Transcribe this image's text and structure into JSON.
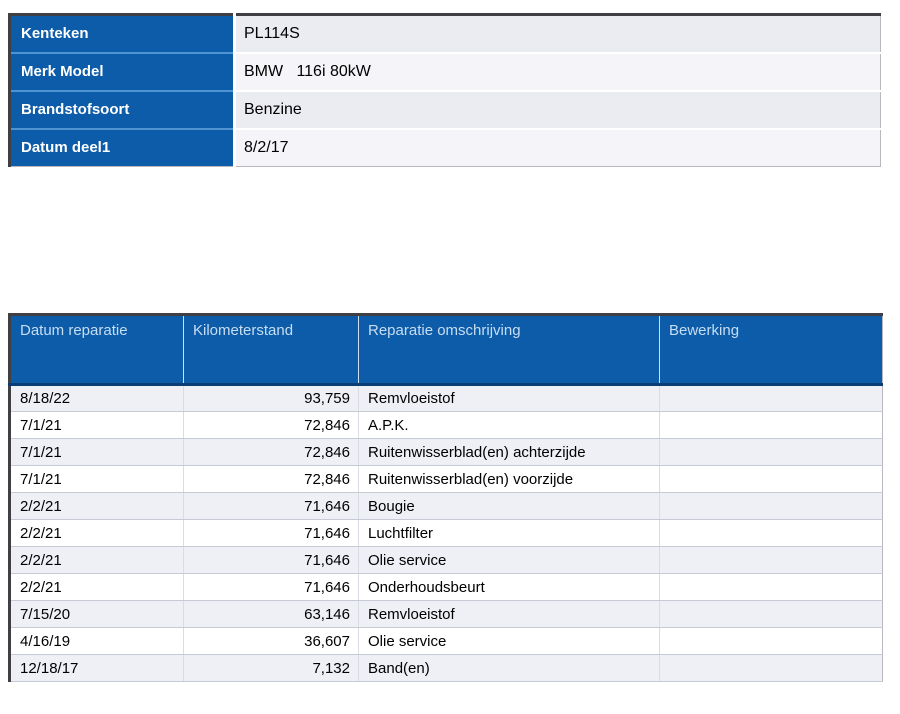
{
  "vehicle_info": {
    "rows": [
      {
        "label": "Kenteken",
        "value": "PL114S"
      },
      {
        "label": "Merk Model",
        "value": "BMW   116i 80kW"
      },
      {
        "label": "Brandstofsoort",
        "value": "Benzine"
      },
      {
        "label": "Datum deel1",
        "value": "8/2/17"
      }
    ]
  },
  "repair_table": {
    "columns": [
      "Datum reparatie",
      "Kilometerstand",
      "Reparatie omschrijving",
      "Bewerking"
    ],
    "rows": [
      {
        "datum": "8/18/22",
        "kilometerstand": "93,759",
        "omschrijving": "Remvloeistof",
        "bewerking": ""
      },
      {
        "datum": "7/1/21",
        "kilometerstand": "72,846",
        "omschrijving": "A.P.K.",
        "bewerking": ""
      },
      {
        "datum": "7/1/21",
        "kilometerstand": "72,846",
        "omschrijving": "Ruitenwisserblad(en) achterzijde",
        "bewerking": ""
      },
      {
        "datum": "7/1/21",
        "kilometerstand": "72,846",
        "omschrijving": "Ruitenwisserblad(en) voorzijde",
        "bewerking": ""
      },
      {
        "datum": "2/2/21",
        "kilometerstand": "71,646",
        "omschrijving": "Bougie",
        "bewerking": ""
      },
      {
        "datum": "2/2/21",
        "kilometerstand": "71,646",
        "omschrijving": "Luchtfilter",
        "bewerking": ""
      },
      {
        "datum": "2/2/21",
        "kilometerstand": "71,646",
        "omschrijving": "Olie service",
        "bewerking": ""
      },
      {
        "datum": "2/2/21",
        "kilometerstand": "71,646",
        "omschrijving": "Onderhoudsbeurt",
        "bewerking": ""
      },
      {
        "datum": "7/15/20",
        "kilometerstand": "63,146",
        "omschrijving": "Remvloeistof",
        "bewerking": ""
      },
      {
        "datum": "4/16/19",
        "kilometerstand": "36,607",
        "omschrijving": "Olie service",
        "bewerking": ""
      },
      {
        "datum": "12/18/17",
        "kilometerstand": "7,132",
        "omschrijving": "Band(en)",
        "bewerking": ""
      }
    ]
  },
  "colors": {
    "header_blue": "#0d5ca9",
    "header_divider_light_blue": "#4f94d0",
    "header_dark_underline": "#0a3e73",
    "repair_header_text": "#c7ddf1",
    "row_alt_background": "#eef0f6",
    "value_cell_background": "#ebebf2"
  }
}
